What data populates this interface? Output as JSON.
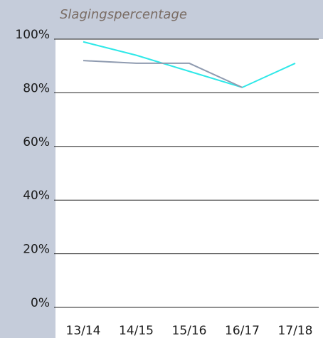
{
  "chart_data": {
    "type": "line",
    "title": "Slagingspercentage",
    "categories": [
      "13/14",
      "14/15",
      "15/16",
      "16/17",
      "17/18"
    ],
    "series": [
      {
        "color": "#2ee8e8",
        "values": [
          99,
          94,
          88,
          82,
          91
        ]
      },
      {
        "color": "#8f9bb0",
        "values": [
          92,
          91,
          91,
          82,
          null
        ]
      }
    ],
    "ylim": [
      0,
      100
    ],
    "yticks": [
      {
        "value": 0,
        "label": "0%"
      },
      {
        "value": 20,
        "label": "20%"
      },
      {
        "value": 40,
        "label": "40%"
      },
      {
        "value": 60,
        "label": "60%"
      },
      {
        "value": 80,
        "label": "80%"
      },
      {
        "value": 100,
        "label": "100%"
      }
    ],
    "grid": true
  }
}
